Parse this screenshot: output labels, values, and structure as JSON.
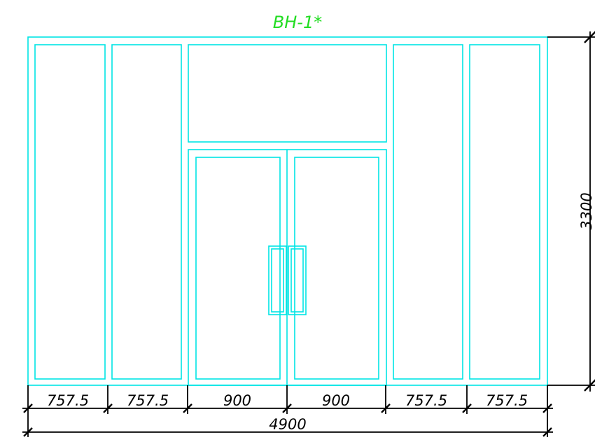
{
  "drawing": {
    "title": "ВН-1*",
    "height_dimension": "3300",
    "total_width_dimension": "4900",
    "segment_dimensions": [
      "757.5",
      "757.5",
      "900",
      "900",
      "757.5",
      "757.5"
    ],
    "colors": {
      "frame": "#00e5e5",
      "dimension": "#000000",
      "title": "#22dd22"
    }
  }
}
